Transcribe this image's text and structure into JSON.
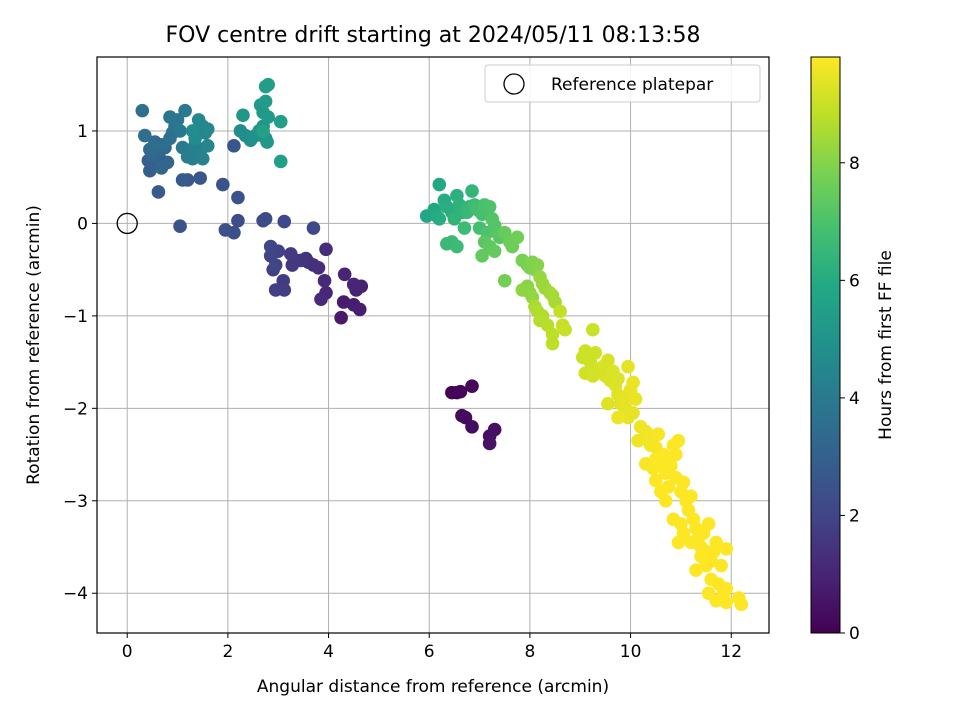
{
  "chart_data": {
    "type": "scatter",
    "title": "FOV centre drift starting at 2024/05/11 08:13:58",
    "xlabel": "Angular distance from reference (arcmin)",
    "ylabel": "Rotation from reference (arcmin)",
    "xlim": [
      -0.6,
      12.75
    ],
    "ylim": [
      -4.43,
      1.8
    ],
    "xticks": [
      0,
      2,
      4,
      6,
      8,
      10,
      12
    ],
    "yticks": [
      -4,
      -3,
      -2,
      -1,
      0,
      1
    ],
    "grid": true,
    "legend": {
      "placement": "top-right",
      "entries": [
        "Reference platepar"
      ]
    },
    "colorbar": {
      "label": "Hours from first FF file",
      "colormap": "viridis",
      "range": [
        0,
        9.8
      ],
      "ticks": [
        0,
        2,
        4,
        6,
        8
      ]
    },
    "reference_point": {
      "x": 0,
      "y": 0,
      "label": "Reference platepar"
    },
    "points": [
      {
        "x": 6.55,
        "y": -1.83,
        "c": 0.05
      },
      {
        "x": 6.45,
        "y": -1.83,
        "c": 0.1
      },
      {
        "x": 6.62,
        "y": -1.82,
        "c": 0.15
      },
      {
        "x": 6.85,
        "y": -1.76,
        "c": 0.2
      },
      {
        "x": 6.65,
        "y": -2.08,
        "c": 0.25
      },
      {
        "x": 6.72,
        "y": -2.1,
        "c": 0.3
      },
      {
        "x": 6.85,
        "y": -2.2,
        "c": 0.35
      },
      {
        "x": 7.3,
        "y": -2.23,
        "c": 0.4
      },
      {
        "x": 7.2,
        "y": -2.3,
        "c": 0.45
      },
      {
        "x": 7.2,
        "y": -2.38,
        "c": 0.5
      },
      {
        "x": 4.25,
        "y": -1.02,
        "c": 0.7
      },
      {
        "x": 4.3,
        "y": -0.85,
        "c": 0.75
      },
      {
        "x": 4.5,
        "y": -0.88,
        "c": 0.8
      },
      {
        "x": 4.62,
        "y": -0.93,
        "c": 0.85
      },
      {
        "x": 4.65,
        "y": -0.68,
        "c": 0.9
      },
      {
        "x": 4.55,
        "y": -0.72,
        "c": 0.95
      },
      {
        "x": 4.5,
        "y": -0.66,
        "c": 1.0
      },
      {
        "x": 4.32,
        "y": -0.55,
        "c": 1.05
      },
      {
        "x": 3.95,
        "y": -0.75,
        "c": 1.1
      },
      {
        "x": 3.85,
        "y": -0.82,
        "c": 1.15
      },
      {
        "x": 3.92,
        "y": -0.62,
        "c": 1.2
      },
      {
        "x": 3.95,
        "y": -0.28,
        "c": 1.25
      },
      {
        "x": 3.8,
        "y": -0.48,
        "c": 1.3
      },
      {
        "x": 3.7,
        "y": -0.45,
        "c": 1.35
      },
      {
        "x": 3.6,
        "y": -0.42,
        "c": 1.4
      },
      {
        "x": 3.55,
        "y": -0.38,
        "c": 1.45
      },
      {
        "x": 3.45,
        "y": -0.4,
        "c": 1.5
      },
      {
        "x": 3.35,
        "y": -0.4,
        "c": 1.55
      },
      {
        "x": 3.28,
        "y": -0.45,
        "c": 1.6
      },
      {
        "x": 3.25,
        "y": -0.33,
        "c": 1.65
      },
      {
        "x": 3.1,
        "y": -0.62,
        "c": 1.7
      },
      {
        "x": 3.12,
        "y": -0.72,
        "c": 1.75
      },
      {
        "x": 2.95,
        "y": -0.72,
        "c": 1.8
      },
      {
        "x": 2.9,
        "y": -0.5,
        "c": 1.85
      },
      {
        "x": 3.0,
        "y": -0.3,
        "c": 1.9
      },
      {
        "x": 2.85,
        "y": -0.35,
        "c": 1.95
      },
      {
        "x": 2.95,
        "y": -0.45,
        "c": 2.0
      },
      {
        "x": 2.85,
        "y": -0.25,
        "c": 2.05
      },
      {
        "x": 3.12,
        "y": 0.02,
        "c": 2.1
      },
      {
        "x": 3.7,
        "y": -0.05,
        "c": 2.15
      },
      {
        "x": 2.75,
        "y": 0.05,
        "c": 2.2
      },
      {
        "x": 2.7,
        "y": 0.03,
        "c": 2.25
      },
      {
        "x": 2.2,
        "y": 0.03,
        "c": 2.3
      },
      {
        "x": 2.12,
        "y": -0.1,
        "c": 2.35
      },
      {
        "x": 1.95,
        "y": -0.07,
        "c": 2.4
      },
      {
        "x": 2.2,
        "y": 0.28,
        "c": 2.45
      },
      {
        "x": 1.9,
        "y": 0.42,
        "c": 2.5
      },
      {
        "x": 1.05,
        "y": -0.03,
        "c": 2.55
      },
      {
        "x": 2.12,
        "y": 0.84,
        "c": 2.6
      },
      {
        "x": 1.45,
        "y": 0.49,
        "c": 2.65
      },
      {
        "x": 1.2,
        "y": 0.47,
        "c": 2.7
      },
      {
        "x": 1.1,
        "y": 0.47,
        "c": 2.75
      },
      {
        "x": 0.62,
        "y": 0.34,
        "c": 2.8
      },
      {
        "x": 0.45,
        "y": 0.57,
        "c": 2.85
      },
      {
        "x": 0.5,
        "y": 0.64,
        "c": 2.9
      },
      {
        "x": 0.42,
        "y": 0.68,
        "c": 2.95
      },
      {
        "x": 0.58,
        "y": 0.73,
        "c": 3.0
      },
      {
        "x": 0.65,
        "y": 0.7,
        "c": 3.05
      },
      {
        "x": 0.72,
        "y": 0.64,
        "c": 3.1
      },
      {
        "x": 0.8,
        "y": 0.66,
        "c": 3.15
      },
      {
        "x": 0.68,
        "y": 0.6,
        "c": 3.2
      },
      {
        "x": 0.75,
        "y": 0.82,
        "c": 3.25
      },
      {
        "x": 0.6,
        "y": 0.78,
        "c": 3.3
      },
      {
        "x": 0.5,
        "y": 0.74,
        "c": 3.35
      },
      {
        "x": 0.45,
        "y": 0.8,
        "c": 3.4
      },
      {
        "x": 0.55,
        "y": 0.88,
        "c": 3.45
      },
      {
        "x": 0.7,
        "y": 0.85,
        "c": 3.5
      },
      {
        "x": 0.35,
        "y": 0.95,
        "c": 3.55
      },
      {
        "x": 0.3,
        "y": 1.22,
        "c": 3.6
      },
      {
        "x": 0.85,
        "y": 0.92,
        "c": 3.65
      },
      {
        "x": 0.9,
        "y": 0.98,
        "c": 3.7
      },
      {
        "x": 0.95,
        "y": 1.05,
        "c": 3.75
      },
      {
        "x": 0.85,
        "y": 1.15,
        "c": 3.8
      },
      {
        "x": 1.0,
        "y": 1.12,
        "c": 3.85
      },
      {
        "x": 1.05,
        "y": 1.0,
        "c": 3.9
      },
      {
        "x": 1.15,
        "y": 1.22,
        "c": 3.95
      },
      {
        "x": 1.1,
        "y": 0.82,
        "c": 4.0
      },
      {
        "x": 1.2,
        "y": 0.72,
        "c": 4.05
      },
      {
        "x": 1.3,
        "y": 0.7,
        "c": 4.1
      },
      {
        "x": 1.25,
        "y": 0.78,
        "c": 4.15
      },
      {
        "x": 1.35,
        "y": 0.85,
        "c": 4.2
      },
      {
        "x": 1.45,
        "y": 0.75,
        "c": 4.25
      },
      {
        "x": 1.5,
        "y": 0.7,
        "c": 4.3
      },
      {
        "x": 1.4,
        "y": 0.97,
        "c": 4.35
      },
      {
        "x": 1.55,
        "y": 0.98,
        "c": 4.4
      },
      {
        "x": 1.6,
        "y": 0.84,
        "c": 4.45
      },
      {
        "x": 1.5,
        "y": 1.05,
        "c": 4.5
      },
      {
        "x": 1.6,
        "y": 1.02,
        "c": 4.55
      },
      {
        "x": 1.42,
        "y": 1.12,
        "c": 4.6
      },
      {
        "x": 1.35,
        "y": 0.92,
        "c": 4.65
      },
      {
        "x": 1.3,
        "y": 1.0,
        "c": 4.7
      },
      {
        "x": 2.25,
        "y": 1.0,
        "c": 4.75
      },
      {
        "x": 2.35,
        "y": 0.95,
        "c": 4.8
      },
      {
        "x": 2.45,
        "y": 0.9,
        "c": 4.85
      },
      {
        "x": 2.55,
        "y": 0.95,
        "c": 4.9
      },
      {
        "x": 2.62,
        "y": 1.0,
        "c": 4.95
      },
      {
        "x": 2.75,
        "y": 0.92,
        "c": 5.0
      },
      {
        "x": 2.7,
        "y": 1.05,
        "c": 5.05
      },
      {
        "x": 2.78,
        "y": 0.88,
        "c": 5.1
      },
      {
        "x": 2.3,
        "y": 1.17,
        "c": 5.15
      },
      {
        "x": 2.65,
        "y": 1.28,
        "c": 5.2
      },
      {
        "x": 2.7,
        "y": 1.2,
        "c": 5.25
      },
      {
        "x": 2.8,
        "y": 1.15,
        "c": 5.3
      },
      {
        "x": 2.75,
        "y": 1.32,
        "c": 5.35
      },
      {
        "x": 2.75,
        "y": 1.48,
        "c": 5.4
      },
      {
        "x": 2.8,
        "y": 1.5,
        "c": 5.45
      },
      {
        "x": 3.05,
        "y": 1.1,
        "c": 5.5
      },
      {
        "x": 3.05,
        "y": 0.67,
        "c": 5.55
      },
      {
        "x": 2.7,
        "y": 1.0,
        "c": 5.6
      },
      {
        "x": 5.95,
        "y": 0.08,
        "c": 5.8
      },
      {
        "x": 6.1,
        "y": 0.15,
        "c": 5.85
      },
      {
        "x": 6.2,
        "y": 0.42,
        "c": 5.9
      },
      {
        "x": 6.15,
        "y": 0.08,
        "c": 5.95
      },
      {
        "x": 6.3,
        "y": 0.25,
        "c": 6.0
      },
      {
        "x": 6.2,
        "y": 0.05,
        "c": 6.05
      },
      {
        "x": 6.35,
        "y": 0.18,
        "c": 6.1
      },
      {
        "x": 6.45,
        "y": 0.12,
        "c": 6.15
      },
      {
        "x": 6.55,
        "y": 0.3,
        "c": 6.2
      },
      {
        "x": 6.6,
        "y": 0.2,
        "c": 6.25
      },
      {
        "x": 6.65,
        "y": 0.12,
        "c": 6.3
      },
      {
        "x": 6.5,
        "y": 0.05,
        "c": 6.35
      },
      {
        "x": 6.85,
        "y": 0.35,
        "c": 6.4
      },
      {
        "x": 6.8,
        "y": 0.18,
        "c": 6.45
      },
      {
        "x": 6.75,
        "y": 0.12,
        "c": 6.5
      },
      {
        "x": 6.35,
        "y": -0.22,
        "c": 6.55
      },
      {
        "x": 6.45,
        "y": -0.2,
        "c": 6.6
      },
      {
        "x": 6.55,
        "y": -0.25,
        "c": 6.65
      },
      {
        "x": 6.7,
        "y": -0.05,
        "c": 6.7
      },
      {
        "x": 6.9,
        "y": 0.2,
        "c": 6.75
      },
      {
        "x": 6.95,
        "y": 0.15,
        "c": 6.8
      },
      {
        "x": 7.0,
        "y": -0.05,
        "c": 6.85
      },
      {
        "x": 7.05,
        "y": 0.1,
        "c": 6.9
      },
      {
        "x": 7.1,
        "y": 0.2,
        "c": 6.95
      },
      {
        "x": 7.15,
        "y": -0.1,
        "c": 7.0
      },
      {
        "x": 7.2,
        "y": 0.18,
        "c": 7.05
      },
      {
        "x": 7.25,
        "y": 0.05,
        "c": 7.1
      },
      {
        "x": 7.3,
        "y": -0.02,
        "c": 7.15
      },
      {
        "x": 7.35,
        "y": -0.1,
        "c": 7.2
      },
      {
        "x": 7.4,
        "y": -0.15,
        "c": 7.25
      },
      {
        "x": 7.1,
        "y": -0.2,
        "c": 7.3
      },
      {
        "x": 7.2,
        "y": -0.25,
        "c": 7.35
      },
      {
        "x": 7.05,
        "y": -0.35,
        "c": 7.4
      },
      {
        "x": 7.3,
        "y": -0.3,
        "c": 7.45
      },
      {
        "x": 7.5,
        "y": -0.1,
        "c": 7.5
      },
      {
        "x": 7.6,
        "y": -0.2,
        "c": 7.55
      },
      {
        "x": 7.65,
        "y": -0.25,
        "c": 7.6
      },
      {
        "x": 7.75,
        "y": -0.15,
        "c": 7.65
      },
      {
        "x": 7.5,
        "y": -0.62,
        "c": 7.7
      },
      {
        "x": 7.95,
        "y": -0.45,
        "c": 7.75
      },
      {
        "x": 7.85,
        "y": -0.4,
        "c": 7.8
      },
      {
        "x": 8.0,
        "y": -0.48,
        "c": 7.85
      },
      {
        "x": 8.05,
        "y": -0.42,
        "c": 7.9
      },
      {
        "x": 8.1,
        "y": -0.5,
        "c": 7.95
      },
      {
        "x": 8.15,
        "y": -0.45,
        "c": 8.0
      },
      {
        "x": 7.95,
        "y": -0.68,
        "c": 8.05
      },
      {
        "x": 7.85,
        "y": -0.72,
        "c": 8.1
      },
      {
        "x": 8.0,
        "y": -0.75,
        "c": 8.15
      },
      {
        "x": 8.05,
        "y": -0.8,
        "c": 8.2
      },
      {
        "x": 8.2,
        "y": -0.58,
        "c": 8.25
      },
      {
        "x": 8.25,
        "y": -0.65,
        "c": 8.3
      },
      {
        "x": 8.3,
        "y": -0.7,
        "c": 8.35
      },
      {
        "x": 8.4,
        "y": -0.75,
        "c": 8.4
      },
      {
        "x": 8.45,
        "y": -0.78,
        "c": 8.45
      },
      {
        "x": 8.5,
        "y": -0.85,
        "c": 8.5
      },
      {
        "x": 8.1,
        "y": -0.9,
        "c": 8.55
      },
      {
        "x": 8.15,
        "y": -0.95,
        "c": 8.6
      },
      {
        "x": 8.25,
        "y": -1.0,
        "c": 8.65
      },
      {
        "x": 8.2,
        "y": -1.05,
        "c": 8.7
      },
      {
        "x": 8.35,
        "y": -1.1,
        "c": 8.75
      },
      {
        "x": 8.45,
        "y": -1.2,
        "c": 8.8
      },
      {
        "x": 8.45,
        "y": -1.3,
        "c": 8.85
      },
      {
        "x": 8.6,
        "y": -0.95,
        "c": 8.9
      },
      {
        "x": 8.65,
        "y": -1.1,
        "c": 8.95
      },
      {
        "x": 8.7,
        "y": -1.15,
        "c": 9.0
      },
      {
        "x": 9.25,
        "y": -1.15,
        "c": 9.02
      },
      {
        "x": 9.05,
        "y": -1.45,
        "c": 9.04
      },
      {
        "x": 9.1,
        "y": -1.38,
        "c": 9.06
      },
      {
        "x": 9.2,
        "y": -1.5,
        "c": 9.08
      },
      {
        "x": 9.3,
        "y": -1.4,
        "c": 9.1
      },
      {
        "x": 9.1,
        "y": -1.62,
        "c": 9.12
      },
      {
        "x": 9.25,
        "y": -1.65,
        "c": 9.14
      },
      {
        "x": 9.35,
        "y": -1.58,
        "c": 9.16
      },
      {
        "x": 9.45,
        "y": -1.55,
        "c": 9.18
      },
      {
        "x": 9.5,
        "y": -1.65,
        "c": 9.2
      },
      {
        "x": 9.55,
        "y": -1.48,
        "c": 9.22
      },
      {
        "x": 9.6,
        "y": -1.7,
        "c": 9.24
      },
      {
        "x": 9.65,
        "y": -1.6,
        "c": 9.26
      },
      {
        "x": 9.7,
        "y": -1.75,
        "c": 9.28
      },
      {
        "x": 9.75,
        "y": -1.68,
        "c": 9.3
      },
      {
        "x": 9.55,
        "y": -1.95,
        "c": 9.32
      },
      {
        "x": 9.75,
        "y": -1.85,
        "c": 9.34
      },
      {
        "x": 9.8,
        "y": -1.95,
        "c": 9.36
      },
      {
        "x": 9.85,
        "y": -1.9,
        "c": 9.38
      },
      {
        "x": 9.9,
        "y": -2.0,
        "c": 9.4
      },
      {
        "x": 9.95,
        "y": -1.55,
        "c": 9.42
      },
      {
        "x": 10.0,
        "y": -1.8,
        "c": 9.44
      },
      {
        "x": 10.05,
        "y": -2.05,
        "c": 9.46
      },
      {
        "x": 9.95,
        "y": -2.1,
        "c": 9.48
      },
      {
        "x": 10.1,
        "y": -1.9,
        "c": 9.5
      },
      {
        "x": 10.05,
        "y": -1.72,
        "c": 9.52
      },
      {
        "x": 9.75,
        "y": -2.1,
        "c": 9.54
      },
      {
        "x": 10.2,
        "y": -2.2,
        "c": 9.56
      },
      {
        "x": 10.15,
        "y": -2.35,
        "c": 9.58
      },
      {
        "x": 10.3,
        "y": -2.25,
        "c": 9.6
      },
      {
        "x": 10.35,
        "y": -2.35,
        "c": 9.62
      },
      {
        "x": 10.4,
        "y": -2.4,
        "c": 9.64
      },
      {
        "x": 10.45,
        "y": -2.3,
        "c": 9.66
      },
      {
        "x": 10.5,
        "y": -2.42,
        "c": 9.68
      },
      {
        "x": 10.55,
        "y": -2.28,
        "c": 9.7
      },
      {
        "x": 10.3,
        "y": -2.6,
        "c": 9.72
      },
      {
        "x": 10.45,
        "y": -2.65,
        "c": 9.74
      },
      {
        "x": 10.5,
        "y": -2.55,
        "c": 9.76
      },
      {
        "x": 10.6,
        "y": -2.6,
        "c": 9.78
      },
      {
        "x": 10.65,
        "y": -2.5,
        "c": 9.8
      },
      {
        "x": 10.7,
        "y": -2.7,
        "c": 9.8
      },
      {
        "x": 10.75,
        "y": -2.55,
        "c": 9.8
      },
      {
        "x": 10.8,
        "y": -2.62,
        "c": 9.8
      },
      {
        "x": 10.85,
        "y": -2.4,
        "c": 9.8
      },
      {
        "x": 10.9,
        "y": -2.5,
        "c": 9.8
      },
      {
        "x": 10.95,
        "y": -2.35,
        "c": 9.8
      },
      {
        "x": 10.5,
        "y": -2.78,
        "c": 9.8
      },
      {
        "x": 10.6,
        "y": -2.9,
        "c": 9.8
      },
      {
        "x": 10.7,
        "y": -3.0,
        "c": 9.8
      },
      {
        "x": 10.75,
        "y": -2.85,
        "c": 9.8
      },
      {
        "x": 10.9,
        "y": -2.75,
        "c": 9.8
      },
      {
        "x": 11.0,
        "y": -2.9,
        "c": 9.8
      },
      {
        "x": 11.05,
        "y": -2.8,
        "c": 9.8
      },
      {
        "x": 11.1,
        "y": -3.0,
        "c": 9.8
      },
      {
        "x": 11.15,
        "y": -3.1,
        "c": 9.8
      },
      {
        "x": 11.2,
        "y": -2.95,
        "c": 9.8
      },
      {
        "x": 10.85,
        "y": -3.2,
        "c": 9.8
      },
      {
        "x": 11.0,
        "y": -3.25,
        "c": 9.8
      },
      {
        "x": 11.05,
        "y": -3.35,
        "c": 9.8
      },
      {
        "x": 10.95,
        "y": -3.45,
        "c": 9.8
      },
      {
        "x": 11.25,
        "y": -3.2,
        "c": 9.8
      },
      {
        "x": 11.3,
        "y": -3.3,
        "c": 9.8
      },
      {
        "x": 11.35,
        "y": -3.4,
        "c": 9.8
      },
      {
        "x": 11.4,
        "y": -3.5,
        "c": 9.8
      },
      {
        "x": 11.45,
        "y": -3.35,
        "c": 9.8
      },
      {
        "x": 11.5,
        "y": -3.55,
        "c": 9.8
      },
      {
        "x": 11.55,
        "y": -3.25,
        "c": 9.8
      },
      {
        "x": 11.2,
        "y": -3.45,
        "c": 9.8
      },
      {
        "x": 11.6,
        "y": -3.65,
        "c": 9.8
      },
      {
        "x": 11.65,
        "y": -3.55,
        "c": 9.8
      },
      {
        "x": 11.7,
        "y": -3.45,
        "c": 9.8
      },
      {
        "x": 11.5,
        "y": -3.7,
        "c": 9.8
      },
      {
        "x": 11.6,
        "y": -3.85,
        "c": 9.8
      },
      {
        "x": 11.75,
        "y": -3.9,
        "c": 9.8
      },
      {
        "x": 11.8,
        "y": -3.7,
        "c": 9.8
      },
      {
        "x": 11.9,
        "y": -3.52,
        "c": 9.8
      },
      {
        "x": 11.85,
        "y": -4.0,
        "c": 9.8
      },
      {
        "x": 11.9,
        "y": -3.95,
        "c": 9.8
      },
      {
        "x": 11.7,
        "y": -4.08,
        "c": 9.8
      },
      {
        "x": 11.9,
        "y": -4.1,
        "c": 9.8
      },
      {
        "x": 12.15,
        "y": -4.05,
        "c": 9.8
      },
      {
        "x": 12.2,
        "y": -4.12,
        "c": 9.8
      },
      {
        "x": 11.55,
        "y": -4.0,
        "c": 9.8
      },
      {
        "x": 11.4,
        "y": -3.6,
        "c": 9.8
      },
      {
        "x": 11.3,
        "y": -3.75,
        "c": 9.8
      }
    ]
  }
}
